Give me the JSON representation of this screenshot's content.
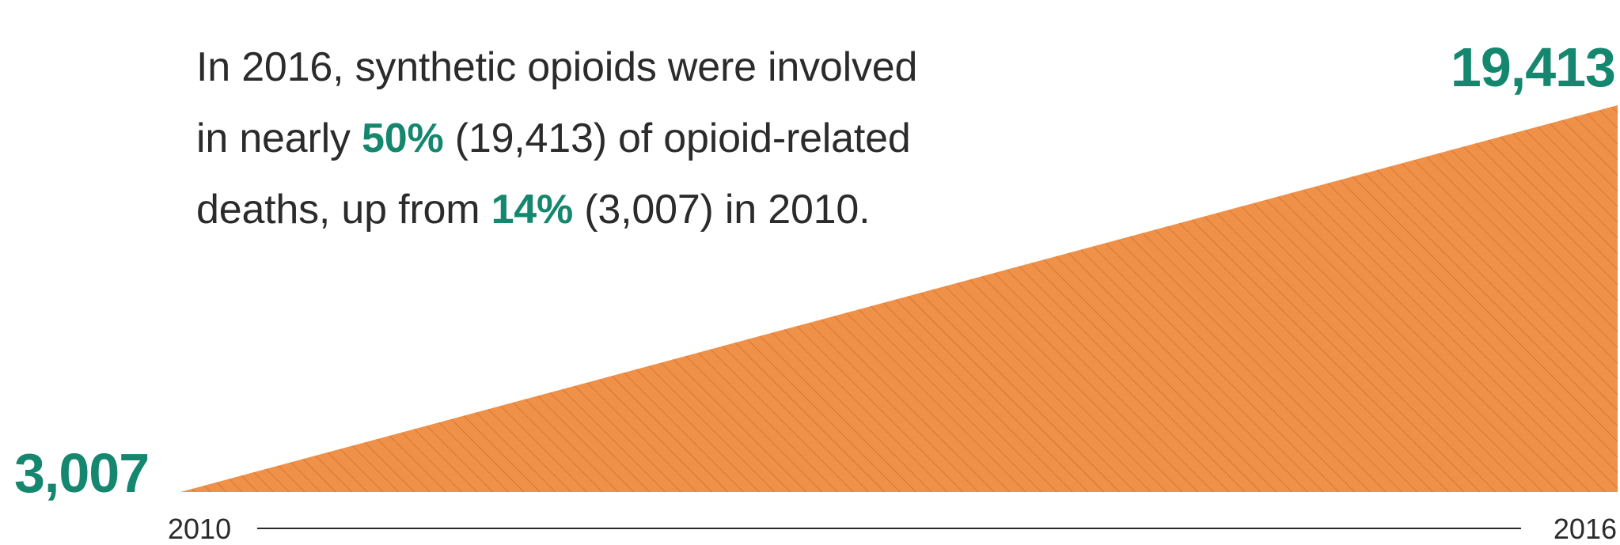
{
  "headline": {
    "line1": "In 2016, synthetic opioids were involved",
    "line2_pre": "in nearly ",
    "line2_pct": "50%",
    "line2_post": " (19,413) of opioid-related",
    "line3_pre": "deaths, up from ",
    "line3_pct": "14%",
    "line3_post": " (3,007) in 2010."
  },
  "chart_data": {
    "type": "area",
    "x": [
      "2010",
      "2016"
    ],
    "values": [
      3007,
      19413
    ],
    "value_labels": [
      "3,007",
      "19,413"
    ],
    "x_tick_labels": [
      "2010",
      "2016"
    ],
    "ylim": [
      3007,
      19413
    ],
    "fill_color": "#f0914a",
    "hatch_color": "#d97530",
    "label_color": "#14876e",
    "axis_color": "#2b2b2b"
  }
}
